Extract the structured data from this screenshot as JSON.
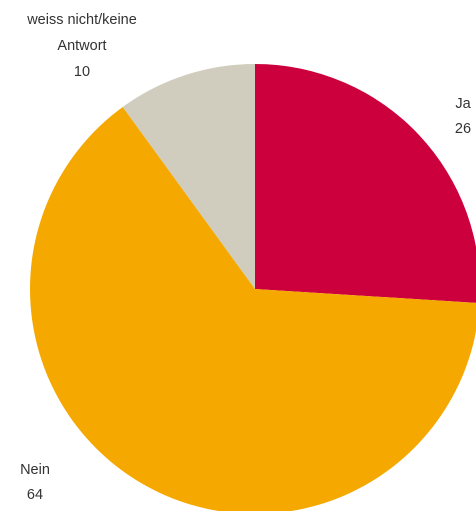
{
  "chart_data": {
    "type": "pie",
    "slices": [
      {
        "label": "Ja",
        "value": 26,
        "value_text": "26",
        "color": "#cc003d"
      },
      {
        "label": "Nein",
        "value": 64,
        "value_text": "64",
        "color": "#f5a800"
      },
      {
        "label": "weiss nicht/keine Antwort",
        "label_lines": [
          "weiss nicht/keine",
          "Antwort"
        ],
        "value": 10,
        "value_text": "10",
        "color": "#d0cdbe"
      }
    ],
    "start": "12 o'clock",
    "direction": "clockwise"
  }
}
